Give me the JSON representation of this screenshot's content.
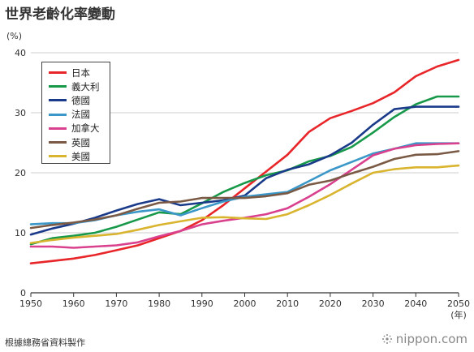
{
  "header": {
    "title": "世界老齡化率變動",
    "unit": "(%)"
  },
  "footer": {
    "source": "根據總務省資料製作",
    "brand": "nippon.com"
  },
  "chart_data": {
    "type": "line",
    "title": "世界老齡化率變動",
    "xlabel": "(年)",
    "ylabel": "(%)",
    "xlim": [
      1950,
      2050
    ],
    "ylim": [
      0,
      40
    ],
    "xticks": [
      1950,
      1960,
      1970,
      1980,
      1990,
      2000,
      2010,
      2020,
      2030,
      2040,
      2050
    ],
    "yticks": [
      0,
      10,
      20,
      30,
      40
    ],
    "grid": true,
    "legend_position": "top-left",
    "x": [
      1950,
      1955,
      1960,
      1965,
      1970,
      1975,
      1980,
      1985,
      1990,
      1995,
      2000,
      2005,
      2010,
      2015,
      2020,
      2025,
      2030,
      2035,
      2040,
      2045,
      2050
    ],
    "series": [
      {
        "name": "日本",
        "color": "#e8262a",
        "values": [
          4.9,
          5.3,
          5.7,
          6.3,
          7.1,
          7.9,
          9.1,
          10.3,
          12.1,
          14.6,
          17.4,
          20.2,
          23.0,
          26.8,
          29.1,
          30.3,
          31.6,
          33.4,
          36.1,
          37.7,
          38.8
        ]
      },
      {
        "name": "義大利",
        "color": "#18994a",
        "values": [
          8.1,
          9.1,
          9.5,
          10.0,
          11.0,
          12.2,
          13.4,
          13.1,
          14.9,
          16.8,
          18.3,
          19.6,
          20.4,
          21.9,
          22.8,
          24.3,
          26.7,
          29.3,
          31.4,
          32.7,
          32.7
        ]
      },
      {
        "name": "德國",
        "color": "#1a3a8a",
        "values": [
          9.7,
          10.7,
          11.5,
          12.5,
          13.7,
          14.8,
          15.6,
          14.6,
          15.0,
          15.4,
          16.2,
          19.1,
          20.5,
          21.4,
          22.9,
          25.0,
          28.0,
          30.6,
          31.0,
          31.0,
          31.0
        ]
      },
      {
        "name": "法國",
        "color": "#3a97c7",
        "values": [
          11.4,
          11.6,
          11.6,
          12.1,
          12.9,
          13.5,
          13.9,
          12.9,
          14.1,
          15.2,
          16.0,
          16.4,
          16.8,
          18.6,
          20.4,
          21.8,
          23.2,
          24.0,
          24.9,
          24.9,
          24.9
        ]
      },
      {
        "name": "加拿大",
        "color": "#d9408e",
        "values": [
          7.7,
          7.7,
          7.5,
          7.7,
          7.9,
          8.4,
          9.4,
          10.3,
          11.4,
          12.0,
          12.5,
          13.1,
          14.1,
          16.0,
          18.1,
          20.5,
          22.9,
          24.0,
          24.6,
          24.8,
          24.9
        ]
      },
      {
        "name": "英國",
        "color": "#7a5a44",
        "values": [
          10.8,
          11.3,
          11.7,
          12.2,
          12.9,
          14.0,
          15.0,
          15.2,
          15.8,
          15.8,
          15.8,
          16.1,
          16.6,
          18.0,
          18.7,
          19.9,
          21.0,
          22.3,
          23.0,
          23.1,
          23.6
        ]
      },
      {
        "name": "美國",
        "color": "#d9b42f",
        "values": [
          8.3,
          8.8,
          9.2,
          9.5,
          9.8,
          10.5,
          11.3,
          11.9,
          12.5,
          12.6,
          12.4,
          12.3,
          13.1,
          14.6,
          16.3,
          18.2,
          20.0,
          20.6,
          20.9,
          20.9,
          21.2
        ]
      }
    ]
  }
}
